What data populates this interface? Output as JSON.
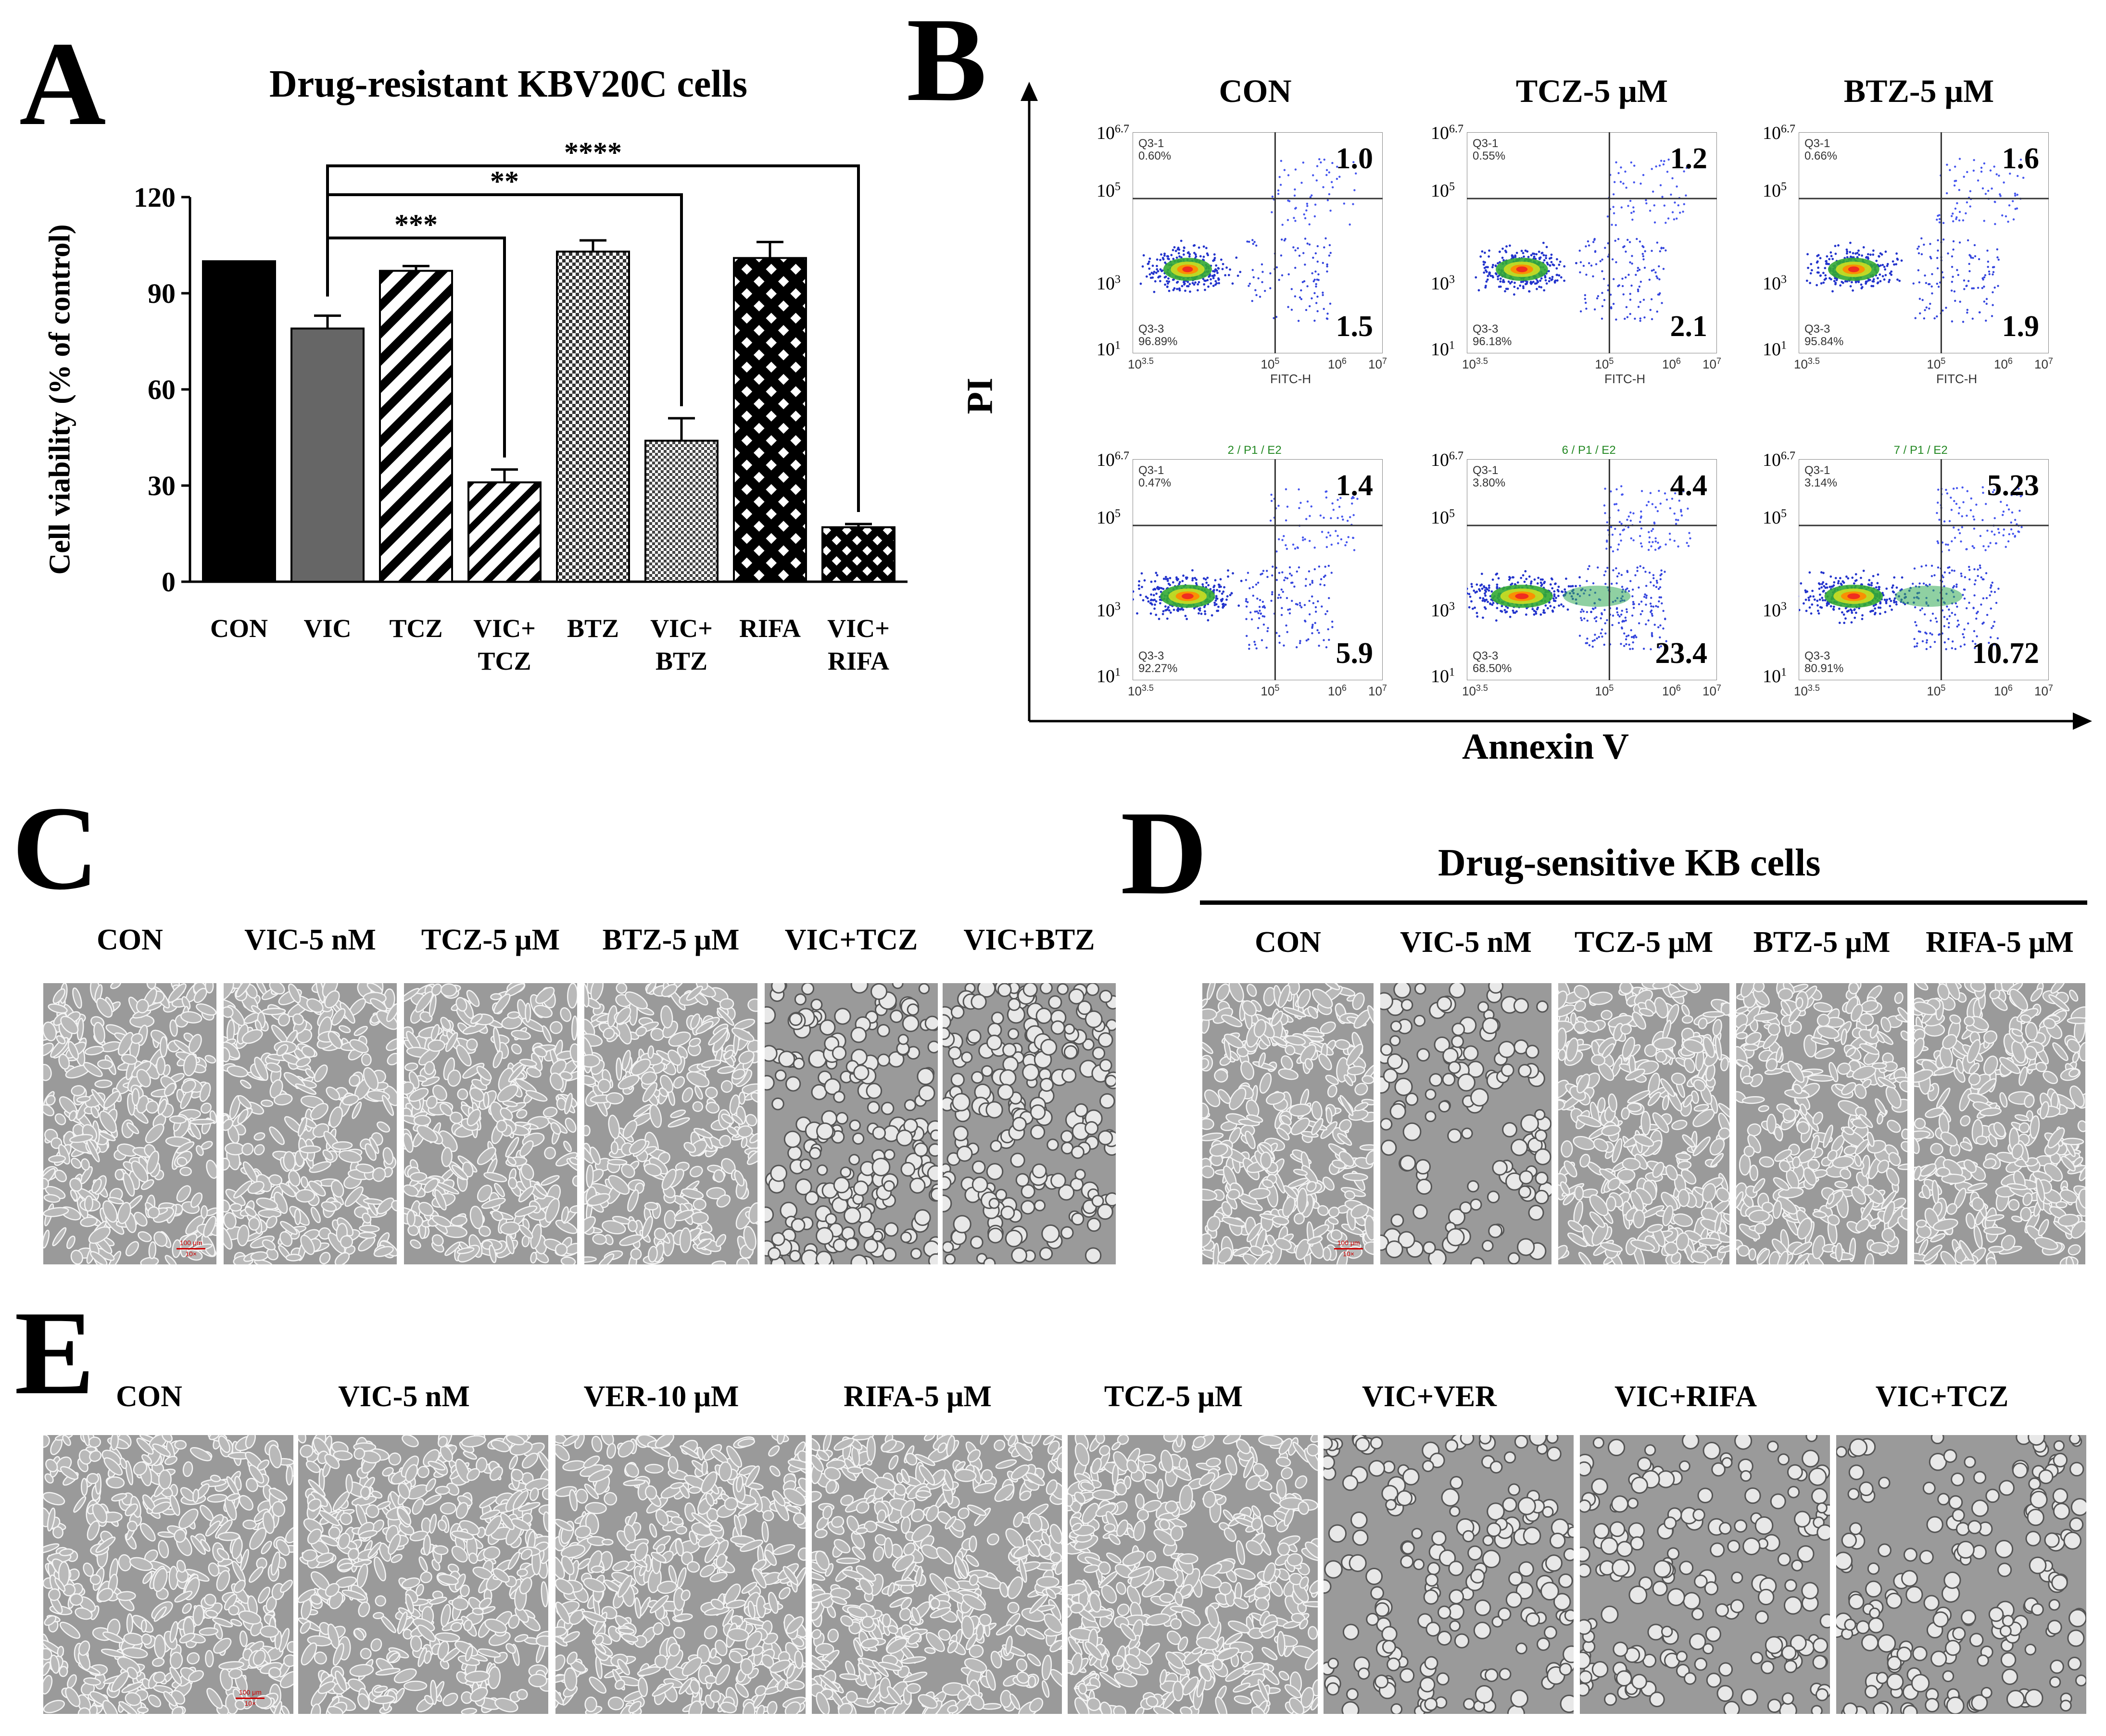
{
  "panels": {
    "a": "A",
    "b": "B",
    "c": "C",
    "d": "D",
    "e": "E"
  },
  "chart_data": {
    "type": "bar",
    "title": "Drug-resistant KBV20C cells",
    "ylabel": "Cell viability (% of control)",
    "xlabel": "",
    "ylim": [
      0,
      120
    ],
    "yticks": [
      "0",
      "30",
      "60",
      "90",
      "120"
    ],
    "categories": [
      {
        "line1": "CON",
        "line2": ""
      },
      {
        "line1": "VIC",
        "line2": ""
      },
      {
        "line1": "TCZ",
        "line2": ""
      },
      {
        "line1": "VIC+",
        "line2": "TCZ"
      },
      {
        "line1": "BTZ",
        "line2": ""
      },
      {
        "line1": "VIC+",
        "line2": "BTZ"
      },
      {
        "line1": "RIFA",
        "line2": ""
      },
      {
        "line1": "VIC+",
        "line2": "RIFA"
      }
    ],
    "values": [
      100,
      79,
      97,
      31,
      103,
      44,
      101,
      17
    ],
    "errors": [
      0,
      4,
      1.5,
      4,
      3.5,
      7,
      5,
      1
    ],
    "patterns": [
      "solid-black",
      "solid-gray",
      "diag-wide",
      "diag-narrow",
      "checker",
      "checker-fine",
      "crosshatch",
      "crosshatch-fine"
    ],
    "significance": [
      {
        "from": 1,
        "to": 3,
        "label": "***"
      },
      {
        "from": 1,
        "to": 5,
        "label": "**"
      },
      {
        "from": 1,
        "to": 7,
        "label": "****"
      }
    ]
  },
  "flow": {
    "ylabel": "PI",
    "xlabel": "Annexin V",
    "column_titles": [
      "CON",
      "TCZ-5 μM",
      "BTZ-5 μM"
    ],
    "y_ticks": [
      "10",
      "10",
      "10",
      "10"
    ],
    "y_tick_exps": [
      "6.7",
      "5",
      "3",
      "1"
    ],
    "x_ticks": [
      "10",
      "10",
      "10",
      "10"
    ],
    "x_tick_exps": [
      "3.5",
      "5",
      "6",
      "7"
    ],
    "x_axis_label": "FITC-H",
    "plots": [
      {
        "ur": "1.0",
        "lr": "1.5",
        "q31": "Q3-1",
        "ul_pct": "0.60%",
        "q33": "Q3-3",
        "ll_pct": "96.89%",
        "gate": ""
      },
      {
        "ur": "1.2",
        "lr": "2.1",
        "q31": "Q3-1",
        "ul_pct": "0.55%",
        "q33": "Q3-3",
        "ll_pct": "96.18%",
        "gate": ""
      },
      {
        "ur": "1.6",
        "lr": "1.9",
        "q31": "Q3-1",
        "ul_pct": "0.66%",
        "q33": "Q3-3",
        "ll_pct": "95.84%",
        "gate": ""
      },
      {
        "ur": "1.4",
        "lr": "5.9",
        "q31": "Q3-1",
        "ul_pct": "0.47%",
        "q33": "Q3-3",
        "ll_pct": "92.27%",
        "gate": "2 / P1 / E2"
      },
      {
        "ur": "4.4",
        "lr": "23.4",
        "q31": "Q3-1",
        "ul_pct": "3.80%",
        "q33": "Q3-3",
        "ll_pct": "68.50%",
        "gate": "6 / P1 / E2"
      },
      {
        "ur": "5.23",
        "lr": "10.72",
        "q31": "Q3-1",
        "ul_pct": "3.14%",
        "q33": "Q3-3",
        "ll_pct": "80.91%",
        "gate": "7 / P1 / E2"
      }
    ]
  },
  "panel_c": {
    "labels": [
      "CON",
      "VIC-5 nM",
      "TCZ-5 μM",
      "BTZ-5 μM",
      "VIC+TCZ",
      "VIC+BTZ"
    ]
  },
  "panel_d": {
    "title": "Drug-sensitive KB cells",
    "labels": [
      "CON",
      "VIC-5 nM",
      "TCZ-5 μM",
      "BTZ-5 μM",
      "RIFA-5 μM"
    ]
  },
  "panel_e": {
    "labels": [
      "CON",
      "VIC-5 nM",
      "VER-10 μM",
      "RIFA-5 μM",
      "TCZ-5 μM",
      "VIC+VER",
      "VIC+RIFA",
      "VIC+TCZ"
    ]
  },
  "scale_bar": {
    "line1": "100 μm",
    "line2": "10×"
  },
  "colors": {
    "bar_gray": "#666666",
    "microscopy_bg": "#9a9a9a",
    "scale_red": "#cc0000"
  }
}
